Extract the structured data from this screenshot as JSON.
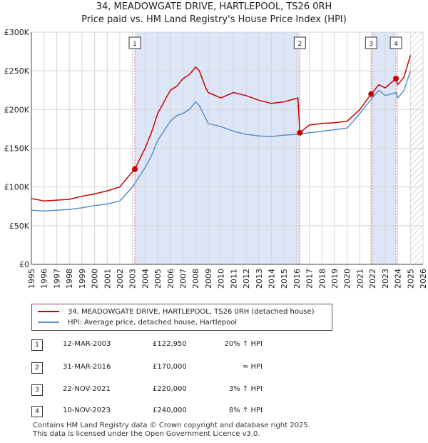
{
  "title_line1": "34, MEADOWGATE DRIVE, HARTLEPOOL, TS26 0RH",
  "title_line2": "Price paid vs. HM Land Registry's House Price Index (HPI)",
  "colors": {
    "price_line": "#cc0000",
    "hpi_line": "#5b8fc9",
    "shade": "#dde6f6",
    "grid": "#d5d5d5",
    "marker_line": "#e06666"
  },
  "legend": {
    "price_label": "34, MEADOWGATE DRIVE, HARTLEPOOL, TS26 0RH (detached house)",
    "hpi_label": "HPI: Average price, detached house, Hartlepool"
  },
  "transactions": [
    {
      "num": "1",
      "date": "12-MAR-2003",
      "price": "£122,950",
      "hpi": "20% ↑ HPI"
    },
    {
      "num": "2",
      "date": "31-MAR-2016",
      "price": "£170,000",
      "hpi": "≈ HPI"
    },
    {
      "num": "3",
      "date": "22-NOV-2021",
      "price": "£220,000",
      "hpi": "3% ↑ HPI"
    },
    {
      "num": "4",
      "date": "10-NOV-2023",
      "price": "£240,000",
      "hpi": "8% ↑ HPI"
    }
  ],
  "footer": {
    "line1": "Contains HM Land Registry data © Crown copyright and database right 2025.",
    "line2": "This data is licensed under the Open Government Licence v3.0."
  },
  "chart_data": {
    "type": "line",
    "xlim": [
      1995,
      2026
    ],
    "ylim": [
      0,
      300000
    ],
    "yticks": [
      0,
      50000,
      100000,
      150000,
      200000,
      250000,
      300000
    ],
    "ytick_labels": [
      "£0",
      "£50K",
      "£100K",
      "£150K",
      "£200K",
      "£250K",
      "£300K"
    ],
    "xticks": [
      1995,
      1996,
      1997,
      1998,
      1999,
      2000,
      2001,
      2002,
      2003,
      2004,
      2005,
      2006,
      2007,
      2008,
      2009,
      2010,
      2011,
      2012,
      2013,
      2014,
      2015,
      2016,
      2017,
      2018,
      2019,
      2020,
      2021,
      2022,
      2023,
      2024,
      2025,
      2026
    ],
    "shaded_periods": [
      [
        2003.19,
        2016.25
      ],
      [
        2021.89,
        2023.86
      ]
    ],
    "hatched_after": 2025.0,
    "sales": [
      {
        "label": "1",
        "x": 2003.19,
        "y": 122950
      },
      {
        "label": "2",
        "x": 2016.25,
        "y": 170000
      },
      {
        "label": "3",
        "x": 2021.89,
        "y": 220000
      },
      {
        "label": "4",
        "x": 2023.86,
        "y": 240000
      }
    ],
    "series": [
      {
        "name": "34, MEADOWGATE DRIVE, HARTLEPOOL, TS26 0RH (detached house)",
        "x": [
          1995,
          1996,
          1997,
          1998,
          1999,
          2000,
          2001,
          2002,
          2002.5,
          2003.19,
          2004,
          2004.5,
          2005,
          2006,
          2006.5,
          2007,
          2007.5,
          2008,
          2008.3,
          2008.8,
          2009,
          2010,
          2011,
          2012,
          2013,
          2014,
          2015,
          2016.1,
          2016.25,
          2017,
          2018,
          2019,
          2020,
          2021,
          2021.89,
          2022.5,
          2023,
          2023.86,
          2024,
          2024.5,
          2025
        ],
        "values": [
          85000,
          82000,
          83000,
          84000,
          88000,
          91000,
          95000,
          100000,
          110000,
          122950,
          150000,
          170000,
          195000,
          225000,
          230000,
          240000,
          245000,
          255000,
          250000,
          228000,
          222000,
          215000,
          222000,
          218000,
          212000,
          208000,
          210000,
          215000,
          170000,
          180000,
          182000,
          183000,
          185000,
          200000,
          220000,
          232000,
          228000,
          240000,
          232000,
          242000,
          270000
        ]
      },
      {
        "name": "HPI: Average price, detached house, Hartlepool",
        "x": [
          1995,
          1996,
          1997,
          1998,
          1999,
          2000,
          2001,
          2002,
          2003,
          2004,
          2004.5,
          2005,
          2006,
          2006.5,
          2007,
          2007.5,
          2008,
          2008.3,
          2009,
          2010,
          2011,
          2012,
          2013,
          2014,
          2015,
          2016,
          2017,
          2018,
          2019,
          2020,
          2021,
          2021.89,
          2022.5,
          2023,
          2023.86,
          2024,
          2024.5,
          2025
        ],
        "values": [
          70000,
          69000,
          70000,
          71000,
          73000,
          76000,
          78000,
          82000,
          100000,
          125000,
          140000,
          160000,
          185000,
          192000,
          195000,
          200000,
          210000,
          205000,
          182000,
          178000,
          172000,
          168000,
          166000,
          165000,
          167000,
          168000,
          170000,
          172000,
          174000,
          176000,
          195000,
          213000,
          225000,
          218000,
          222000,
          215000,
          225000,
          250000
        ]
      }
    ]
  }
}
